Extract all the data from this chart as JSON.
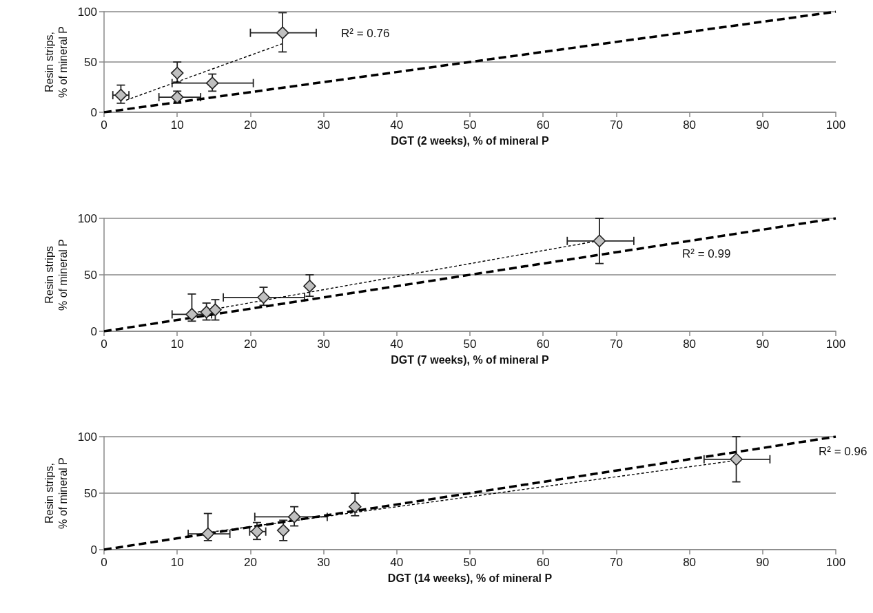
{
  "chart_data": [
    {
      "type": "scatter",
      "xlabel": "DGT (2 weeks), % of mineral P",
      "ylabel": "Resin strips,\n% of mineral P",
      "xlim": [
        0,
        100
      ],
      "ylim": [
        0,
        100
      ],
      "xticks": [
        0,
        10,
        20,
        30,
        40,
        50,
        60,
        70,
        80,
        90,
        100
      ],
      "yticks": [
        0,
        50,
        100
      ],
      "grid": "y",
      "annotations": [
        "R² = 0.76"
      ],
      "series": [
        {
          "marker": "diamond",
          "color": "#c0c0c0",
          "x": [
            2.3,
            10,
            10,
            14.8,
            24.4
          ],
          "values": [
            17,
            39,
            15,
            29,
            79
          ],
          "errors": [
            [
              9,
              27
            ],
            [
              30,
              50
            ],
            [
              9,
              21
            ],
            [
              21,
              38
            ],
            [
              60,
              99
            ]
          ],
          "xerrors": [
            [
              1.2,
              3.4
            ],
            null,
            [
              7.5,
              13.2
            ],
            [
              9.3,
              20.4
            ],
            [
              20,
              29
            ]
          ]
        },
        {
          "type": "line",
          "color": "#000000",
          "line_style": "dashed",
          "x": [
            3,
            24.3
          ],
          "values": [
            12,
            68
          ]
        },
        {
          "type": "line",
          "color": "#000000",
          "line_style": "dashed",
          "x": [
            0,
            100
          ],
          "values": [
            0,
            100
          ]
        }
      ]
    },
    {
      "type": "scatter",
      "xlabel": "DGT (7 weeks), % of mineral P",
      "ylabel": "Resin strips\n% of mineral P",
      "xlim": [
        0,
        100
      ],
      "ylim": [
        0,
        100
      ],
      "xticks": [
        0,
        10,
        20,
        30,
        40,
        50,
        60,
        70,
        80,
        90,
        100
      ],
      "yticks": [
        0,
        50,
        100
      ],
      "grid": "y",
      "annotations": [
        "R² = 0.99"
      ],
      "series": [
        {
          "marker": "diamond",
          "color": "#c0c0c0",
          "x": [
            12,
            14,
            15.2,
            21.8,
            28.1,
            67.7
          ],
          "values": [
            15,
            17,
            19,
            30,
            40,
            80
          ],
          "errors": [
            [
              9,
              33
            ],
            [
              10,
              25
            ],
            [
              10,
              28
            ],
            [
              23,
              39
            ],
            [
              31,
              50
            ],
            [
              60,
              100
            ]
          ],
          "xerrors": [
            [
              9.3,
              14.7
            ],
            null,
            null,
            [
              16.3,
              27.4
            ],
            null,
            [
              63.3,
              72.4
            ]
          ]
        },
        {
          "type": "line",
          "color": "#000000",
          "line_style": "dashed",
          "x": [
            12.8,
            67
          ],
          "values": [
            17,
            79.5
          ]
        },
        {
          "type": "line",
          "color": "#000000",
          "line_style": "dashed",
          "x": [
            0,
            100
          ],
          "values": [
            0,
            100
          ]
        }
      ]
    },
    {
      "type": "scatter",
      "xlabel": "DGT (14 weeks), % of mineral P",
      "ylabel": "Resin strips,\n% of mineral P",
      "xlim": [
        0,
        100
      ],
      "ylim": [
        0,
        100
      ],
      "xticks": [
        0,
        10,
        20,
        30,
        40,
        50,
        60,
        70,
        80,
        90,
        100
      ],
      "yticks": [
        0,
        50,
        100
      ],
      "grid": "y",
      "annotations": [
        "R² = 0.96"
      ],
      "series": [
        {
          "marker": "diamond",
          "color": "#c0c0c0",
          "x": [
            14.2,
            20.9,
            24.5,
            26,
            34.3,
            86.4
          ],
          "values": [
            14,
            16,
            17,
            29,
            38,
            80
          ],
          "errors": [
            [
              8,
              32
            ],
            [
              9,
              24
            ],
            [
              8,
              26
            ],
            [
              21,
              38
            ],
            [
              30,
              50
            ],
            [
              60,
              100
            ]
          ],
          "xerrors": [
            [
              11.5,
              17.2
            ],
            [
              19.9,
              22.1
            ],
            null,
            [
              20.6,
              30.5
            ],
            null,
            [
              82,
              91
            ]
          ]
        },
        {
          "type": "line",
          "color": "#000000",
          "line_style": "dashed",
          "x": [
            14,
            86.4
          ],
          "values": [
            15,
            79
          ]
        },
        {
          "type": "line",
          "color": "#000000",
          "line_style": "dashed",
          "x": [
            0,
            100
          ],
          "values": [
            0,
            100
          ]
        }
      ]
    }
  ]
}
